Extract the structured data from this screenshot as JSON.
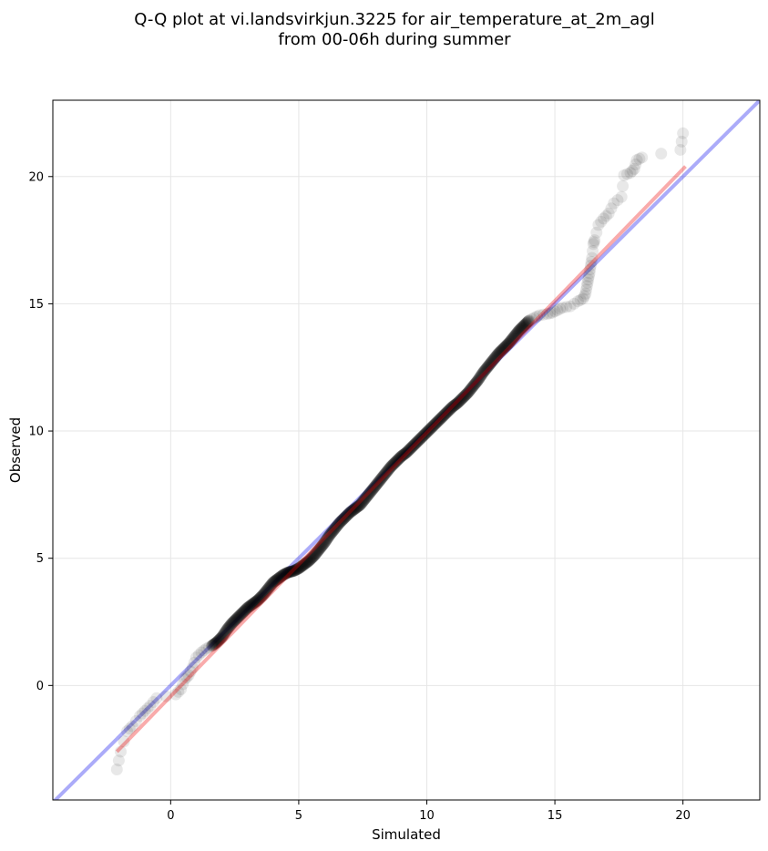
{
  "chart_data": {
    "type": "scatter",
    "title_line1": "Q-Q plot at vi.landsvirkjun.3225 for air_temperature_at_2m_agl",
    "title_line2": "from 00-06h during summer",
    "xlabel": "Simulated",
    "ylabel": "Observed",
    "xlim": [
      -4.6,
      23.0
    ],
    "ylim": [
      -4.5,
      23.0
    ],
    "xticks": [
      0,
      5,
      10,
      15,
      20
    ],
    "yticks": [
      0,
      5,
      10,
      15,
      20
    ],
    "grid": true,
    "point_color": "#000000",
    "identity_line": {
      "x": [
        -4.6,
        23.0
      ],
      "y": [
        -4.6,
        23.0
      ],
      "color": "#0000ee"
    },
    "fit_line": {
      "x": [
        -2.1,
        20.1
      ],
      "y": [
        -2.6,
        20.4
      ],
      "color": "#ee0000"
    },
    "points": [
      [
        -2.1,
        -3.3
      ],
      [
        -1.95,
        -2.6
      ],
      [
        -1.7,
        -1.8
      ],
      [
        -1.5,
        -1.6
      ],
      [
        -1.2,
        -1.2
      ],
      [
        -1.0,
        -1.0
      ],
      [
        -0.8,
        -0.8
      ],
      [
        -0.55,
        -0.5
      ],
      [
        0.2,
        -0.35
      ],
      [
        0.4,
        -0.15
      ],
      [
        0.55,
        0.25
      ],
      [
        0.7,
        0.4
      ],
      [
        0.85,
        0.7
      ],
      [
        1.0,
        1.1
      ],
      [
        1.2,
        1.3
      ],
      [
        1.4,
        1.45
      ],
      [
        1.6,
        1.55
      ],
      [
        1.8,
        1.7
      ],
      [
        2.0,
        1.9
      ],
      [
        2.2,
        2.2
      ],
      [
        2.4,
        2.45
      ],
      [
        2.6,
        2.65
      ],
      [
        2.8,
        2.85
      ],
      [
        3.0,
        3.05
      ],
      [
        3.2,
        3.2
      ],
      [
        3.4,
        3.35
      ],
      [
        3.6,
        3.55
      ],
      [
        3.8,
        3.8
      ],
      [
        4.0,
        4.05
      ],
      [
        4.2,
        4.2
      ],
      [
        4.4,
        4.35
      ],
      [
        4.6,
        4.45
      ],
      [
        4.8,
        4.5
      ],
      [
        5.0,
        4.6
      ],
      [
        5.2,
        4.75
      ],
      [
        5.4,
        4.9
      ],
      [
        5.6,
        5.1
      ],
      [
        5.8,
        5.35
      ],
      [
        6.0,
        5.6
      ],
      [
        6.2,
        5.9
      ],
      [
        6.4,
        6.15
      ],
      [
        6.6,
        6.4
      ],
      [
        6.8,
        6.6
      ],
      [
        7.0,
        6.8
      ],
      [
        7.2,
        6.95
      ],
      [
        7.4,
        7.1
      ],
      [
        7.6,
        7.35
      ],
      [
        7.8,
        7.6
      ],
      [
        8.0,
        7.85
      ],
      [
        8.2,
        8.1
      ],
      [
        8.4,
        8.35
      ],
      [
        8.6,
        8.6
      ],
      [
        8.8,
        8.8
      ],
      [
        9.0,
        9.0
      ],
      [
        9.2,
        9.15
      ],
      [
        9.4,
        9.35
      ],
      [
        9.6,
        9.55
      ],
      [
        9.8,
        9.75
      ],
      [
        10.0,
        9.95
      ],
      [
        10.2,
        10.15
      ],
      [
        10.4,
        10.35
      ],
      [
        10.6,
        10.55
      ],
      [
        10.8,
        10.75
      ],
      [
        11.0,
        10.95
      ],
      [
        11.2,
        11.1
      ],
      [
        11.4,
        11.3
      ],
      [
        11.6,
        11.5
      ],
      [
        11.8,
        11.75
      ],
      [
        12.0,
        12.0
      ],
      [
        12.2,
        12.3
      ],
      [
        12.4,
        12.55
      ],
      [
        12.6,
        12.8
      ],
      [
        12.8,
        13.05
      ],
      [
        13.0,
        13.25
      ],
      [
        13.2,
        13.45
      ],
      [
        13.4,
        13.7
      ],
      [
        13.6,
        13.95
      ],
      [
        13.8,
        14.15
      ],
      [
        14.0,
        14.35
      ],
      [
        14.2,
        14.45
      ],
      [
        14.4,
        14.55
      ],
      [
        14.7,
        14.6
      ],
      [
        14.9,
        14.65
      ],
      [
        15.1,
        14.75
      ],
      [
        15.3,
        14.85
      ],
      [
        15.6,
        14.9
      ],
      [
        15.9,
        15.1
      ],
      [
        16.1,
        15.2
      ],
      [
        16.2,
        15.4
      ],
      [
        16.25,
        15.7
      ],
      [
        16.3,
        15.95
      ],
      [
        16.35,
        16.2
      ],
      [
        16.4,
        16.5
      ],
      [
        16.45,
        16.8
      ],
      [
        16.5,
        17.35
      ],
      [
        16.55,
        17.5
      ],
      [
        16.7,
        18.1
      ],
      [
        16.9,
        18.35
      ],
      [
        17.1,
        18.55
      ],
      [
        17.3,
        18.95
      ],
      [
        17.6,
        19.2
      ],
      [
        17.7,
        20.05
      ],
      [
        17.95,
        20.15
      ],
      [
        18.1,
        20.3
      ],
      [
        18.2,
        20.65
      ],
      [
        18.4,
        20.75
      ],
      [
        19.9,
        21.05
      ],
      [
        20.0,
        21.7
      ]
    ]
  }
}
